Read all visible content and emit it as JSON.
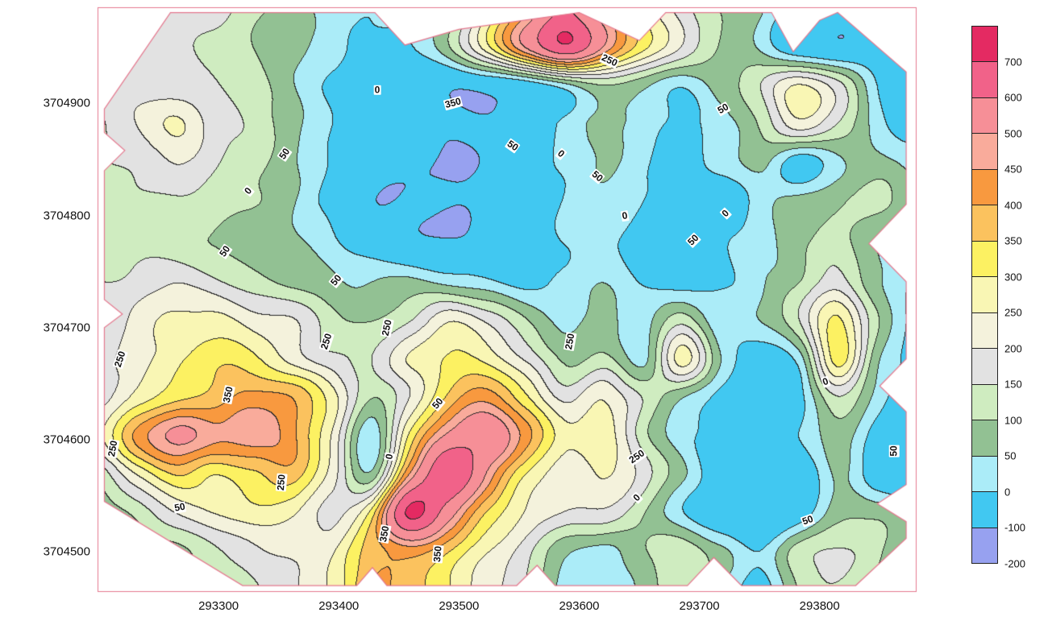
{
  "figure": {
    "background": "#ffffff"
  },
  "chart_data": {
    "type": "heatmap",
    "subtype": "filled-contour-surface-map",
    "title": "",
    "xlabel": "",
    "ylabel": "",
    "xlim": [
      293200,
      293880
    ],
    "ylim": [
      3704465,
      3704985
    ],
    "x_ticks": [
      293300,
      293400,
      293500,
      293600,
      293700,
      293800
    ],
    "y_ticks": [
      3704500,
      3704600,
      3704700,
      3704800,
      3704900
    ],
    "levels": [
      -200,
      -100,
      0,
      50,
      100,
      150,
      200,
      250,
      300,
      350,
      400,
      450,
      500,
      600,
      700
    ],
    "band_colors": [
      "#97a1f0",
      "#41c8f1",
      "#abecf8",
      "#92c193",
      "#cfecc0",
      "#e2e2e2",
      "#f4f2dc",
      "#f9f6b4",
      "#fcf162",
      "#fbc25e",
      "#f8993f",
      "#f9ab9b",
      "#f68f97",
      "#f16289",
      "#e42a62"
    ],
    "colorbar_labels": [
      "700",
      "600",
      "500",
      "450",
      "400",
      "350",
      "300",
      "250",
      "200",
      "150",
      "100",
      "50",
      "0",
      "-100",
      "-200"
    ],
    "frame_color": "#e5798f",
    "contour_line_color": "#282828",
    "label_text_color": "#111111",
    "grid": {
      "nx": 22,
      "ny": 16,
      "x_start": 293200,
      "x_end": 293880,
      "y_top": 3704985,
      "y_bottom": 3704465,
      "values_rows_top_to_bottom": [
        [
          150,
          160,
          170,
          160,
          120,
          80,
          30,
          10,
          20,
          60,
          250,
          420,
          600,
          450,
          300,
          180,
          100,
          60,
          -50,
          -80,
          -60,
          -40
        ],
        [
          150,
          155,
          165,
          150,
          110,
          70,
          20,
          -20,
          0,
          80,
          280,
          500,
          690,
          500,
          320,
          200,
          110,
          50,
          -60,
          -90,
          -70,
          -50
        ],
        [
          160,
          170,
          180,
          160,
          120,
          60,
          0,
          -60,
          -90,
          -95,
          -80,
          -40,
          20,
          100,
          60,
          20,
          80,
          150,
          250,
          180,
          0,
          -60
        ],
        [
          150,
          200,
          260,
          180,
          130,
          70,
          0,
          -70,
          -90,
          -95,
          -90,
          -50,
          10,
          70,
          30,
          -10,
          30,
          100,
          230,
          150,
          20,
          -40
        ],
        [
          140,
          170,
          200,
          150,
          110,
          60,
          -10,
          -80,
          -95,
          -95,
          -90,
          -40,
          10,
          50,
          10,
          -30,
          10,
          60,
          -40,
          40,
          80,
          30
        ],
        [
          130,
          140,
          150,
          120,
          90,
          50,
          -20,
          -90,
          -95,
          -90,
          -80,
          -30,
          0,
          30,
          -10,
          -40,
          -60,
          20,
          60,
          100,
          130,
          80
        ],
        [
          140,
          130,
          110,
          90,
          70,
          50,
          10,
          -40,
          -80,
          -90,
          -60,
          -20,
          10,
          0,
          -20,
          -40,
          -20,
          30,
          80,
          120,
          60,
          0
        ],
        [
          150,
          170,
          190,
          160,
          120,
          80,
          60,
          40,
          60,
          30,
          0,
          -20,
          10,
          40,
          0,
          -30,
          -10,
          40,
          100,
          170,
          60,
          -10
        ],
        [
          160,
          210,
          260,
          270,
          230,
          200,
          120,
          90,
          150,
          230,
          180,
          90,
          40,
          70,
          30,
          120,
          20,
          60,
          150,
          300,
          100,
          -20
        ],
        [
          170,
          230,
          280,
          340,
          310,
          240,
          160,
          150,
          250,
          300,
          280,
          180,
          80,
          120,
          40,
          280,
          60,
          -40,
          30,
          320,
          60,
          -30
        ],
        [
          180,
          260,
          330,
          380,
          420,
          400,
          280,
          100,
          200,
          350,
          420,
          300,
          180,
          250,
          150,
          60,
          0,
          -60,
          -20,
          150,
          20,
          -60
        ],
        [
          230,
          420,
          520,
          460,
          480,
          420,
          250,
          20,
          300,
          520,
          580,
          430,
          260,
          280,
          120,
          30,
          -40,
          -80,
          0,
          80,
          -20,
          -70
        ],
        [
          120,
          260,
          350,
          300,
          330,
          380,
          220,
          60,
          450,
          700,
          500,
          300,
          220,
          260,
          180,
          60,
          -60,
          -90,
          -60,
          60,
          -40,
          -80
        ],
        [
          60,
          120,
          200,
          240,
          280,
          250,
          180,
          320,
          720,
          550,
          350,
          250,
          200,
          180,
          100,
          0,
          -80,
          -90,
          -40,
          80,
          100,
          40
        ],
        [
          40,
          60,
          90,
          130,
          180,
          200,
          240,
          380,
          420,
          350,
          260,
          180,
          60,
          30,
          80,
          140,
          60,
          0,
          120,
          160,
          120,
          60
        ],
        [
          20,
          40,
          70,
          110,
          150,
          180,
          260,
          400,
          380,
          300,
          220,
          140,
          40,
          10,
          60,
          120,
          40,
          -20,
          100,
          140,
          100,
          40
        ]
      ]
    },
    "boundary": [
      [
        293205,
        3704895
      ],
      [
        293260,
        3704981
      ],
      [
        293430,
        3704981
      ],
      [
        293455,
        3704952
      ],
      [
        293500,
        3704966
      ],
      [
        293600,
        3704981
      ],
      [
        293650,
        3704956
      ],
      [
        293672,
        3704981
      ],
      [
        293760,
        3704981
      ],
      [
        293778,
        3704946
      ],
      [
        293800,
        3704974
      ],
      [
        293815,
        3704981
      ],
      [
        293872,
        3704928
      ],
      [
        293872,
        3704810
      ],
      [
        293841,
        3704775
      ],
      [
        293872,
        3704741
      ],
      [
        293872,
        3704672
      ],
      [
        293850,
        3704648
      ],
      [
        293872,
        3704625
      ],
      [
        293872,
        3704560
      ],
      [
        293848,
        3704543
      ],
      [
        293872,
        3704527
      ],
      [
        293872,
        3704512
      ],
      [
        293830,
        3704470
      ],
      [
        293735,
        3704470
      ],
      [
        293712,
        3704495
      ],
      [
        293690,
        3704470
      ],
      [
        293580,
        3704470
      ],
      [
        293565,
        3704488
      ],
      [
        293548,
        3704470
      ],
      [
        293440,
        3704470
      ],
      [
        293428,
        3704486
      ],
      [
        293415,
        3704470
      ],
      [
        293320,
        3704470
      ],
      [
        293205,
        3704545
      ],
      [
        293205,
        3704700
      ],
      [
        293220,
        3704712
      ],
      [
        293205,
        3704725
      ],
      [
        293205,
        3704840
      ],
      [
        293222,
        3704858
      ],
      [
        293205,
        3704874
      ]
    ],
    "contour_labels": [
      {
        "text": "350",
        "x": 293495,
        "y": 3704900,
        "rot": -15
      },
      {
        "text": "250",
        "x": 293625,
        "y": 3704938,
        "rot": 25
      },
      {
        "text": "0",
        "x": 293432,
        "y": 3704912,
        "rot": 0
      },
      {
        "text": "50",
        "x": 293355,
        "y": 3704855,
        "rot": -55
      },
      {
        "text": "0",
        "x": 293325,
        "y": 3704822,
        "rot": -50
      },
      {
        "text": "0",
        "x": 293585,
        "y": 3704855,
        "rot": 40
      },
      {
        "text": "50",
        "x": 293615,
        "y": 3704835,
        "rot": 40
      },
      {
        "text": "50",
        "x": 293720,
        "y": 3704895,
        "rot": -30
      },
      {
        "text": "0",
        "x": 293638,
        "y": 3704800,
        "rot": -10
      },
      {
        "text": "50",
        "x": 293695,
        "y": 3704778,
        "rot": -45
      },
      {
        "text": "0",
        "x": 293722,
        "y": 3704802,
        "rot": -45
      },
      {
        "text": "50",
        "x": 293305,
        "y": 3704768,
        "rot": -55
      },
      {
        "text": "50",
        "x": 293398,
        "y": 3704742,
        "rot": -50
      },
      {
        "text": "250",
        "x": 293440,
        "y": 3704700,
        "rot": -78
      },
      {
        "text": "250",
        "x": 293218,
        "y": 3704672,
        "rot": -72
      },
      {
        "text": "350",
        "x": 293308,
        "y": 3704640,
        "rot": -78
      },
      {
        "text": "250",
        "x": 293390,
        "y": 3704688,
        "rot": -72
      },
      {
        "text": "250",
        "x": 293592,
        "y": 3704688,
        "rot": -80
      },
      {
        "text": "50",
        "x": 293482,
        "y": 3704632,
        "rot": -50
      },
      {
        "text": "0",
        "x": 293442,
        "y": 3704585,
        "rot": -80
      },
      {
        "text": "250",
        "x": 293648,
        "y": 3704585,
        "rot": -35
      },
      {
        "text": "250",
        "x": 293212,
        "y": 3704592,
        "rot": -80
      },
      {
        "text": "250",
        "x": 293352,
        "y": 3704562,
        "rot": -85
      },
      {
        "text": "50",
        "x": 293268,
        "y": 3704540,
        "rot": -10
      },
      {
        "text": "350",
        "x": 293438,
        "y": 3704516,
        "rot": -80
      },
      {
        "text": "350",
        "x": 293482,
        "y": 3704498,
        "rot": -85
      },
      {
        "text": "50",
        "x": 293790,
        "y": 3704528,
        "rot": -20
      },
      {
        "text": "0",
        "x": 293648,
        "y": 3704548,
        "rot": -45
      },
      {
        "text": "50",
        "x": 293862,
        "y": 3704590,
        "rot": -90
      },
      {
        "text": "0",
        "x": 293805,
        "y": 3704652,
        "rot": -20
      },
      {
        "text": "50",
        "x": 293545,
        "y": 3704862,
        "rot": 35
      }
    ]
  }
}
